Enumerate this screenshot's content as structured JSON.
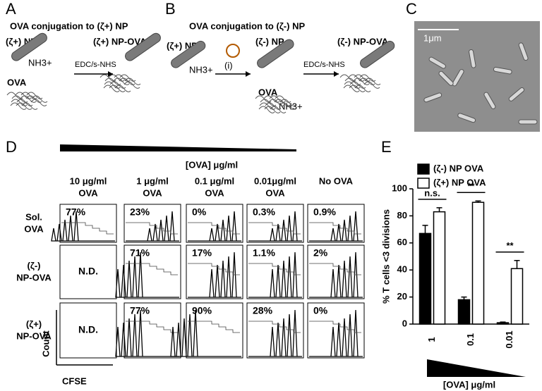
{
  "panel_a": {
    "letter": "A",
    "title": "OVA conjugation to (ζ+) NP",
    "labels": [
      "(ζ+) NP",
      "NH3+",
      "EDC/s-NHS",
      "(ζ+) NP-OVA",
      "OVA"
    ]
  },
  "panel_b": {
    "letter": "B",
    "title": "OVA conjugation to (ζ-) NP",
    "labels": [
      "(ζ+) NP",
      "NH3+",
      "(i)",
      "(ζ-) NP",
      "EDC/s-NHS",
      "(ζ-) NP-OVA",
      "OVA",
      "NH3+"
    ]
  },
  "panel_c": {
    "letter": "C",
    "scale_bar": "1μm"
  },
  "panel_d": {
    "letter": "D",
    "gradient_label": "[OVA] μg/ml",
    "columns": [
      [
        "10 μg/ml",
        "OVA"
      ],
      [
        "1 μg/ml",
        "OVA"
      ],
      [
        "0.1 μg/ml",
        "OVA"
      ],
      [
        "0.01μg/ml",
        "OVA"
      ],
      [
        "No OVA"
      ]
    ],
    "rows": [
      {
        "label": [
          "Sol.",
          "OVA"
        ],
        "cells": [
          "77%",
          "23%",
          "0%",
          "0.3%",
          "0.9%"
        ]
      },
      {
        "label": [
          "(ζ-)",
          "NP-OVA"
        ],
        "cells": [
          "N.D.",
          "71%",
          "17%",
          "1.1%",
          "2%"
        ]
      },
      {
        "label": [
          "(ζ+)",
          "NP-OVA"
        ],
        "cells": [
          "N.D.",
          "77%",
          "90%",
          "28%",
          "0%"
        ]
      }
    ],
    "y_label": "Count",
    "x_label": "CFSE"
  },
  "panel_e": {
    "letter": "E"
  },
  "chart_data": {
    "type": "bar",
    "categories": [
      "1",
      "0.1",
      "0.01"
    ],
    "series": [
      {
        "name": "(ζ-) NP OVA",
        "color": "#000000",
        "values": [
          67,
          18,
          1
        ],
        "errors": [
          6,
          2,
          0.5
        ]
      },
      {
        "name": "(ζ+) NP OVA",
        "color": "#ffffff",
        "values": [
          83,
          90,
          41
        ],
        "errors": [
          3,
          1,
          6
        ]
      }
    ],
    "ylim": [
      0,
      100
    ],
    "yticks": [
      0,
      20,
      40,
      60,
      80,
      100
    ],
    "y_label": "% T cells <3 divisions",
    "x_label": "[OVA] μg/ml",
    "annotations": [
      "n.s.",
      "**",
      "**"
    ]
  }
}
